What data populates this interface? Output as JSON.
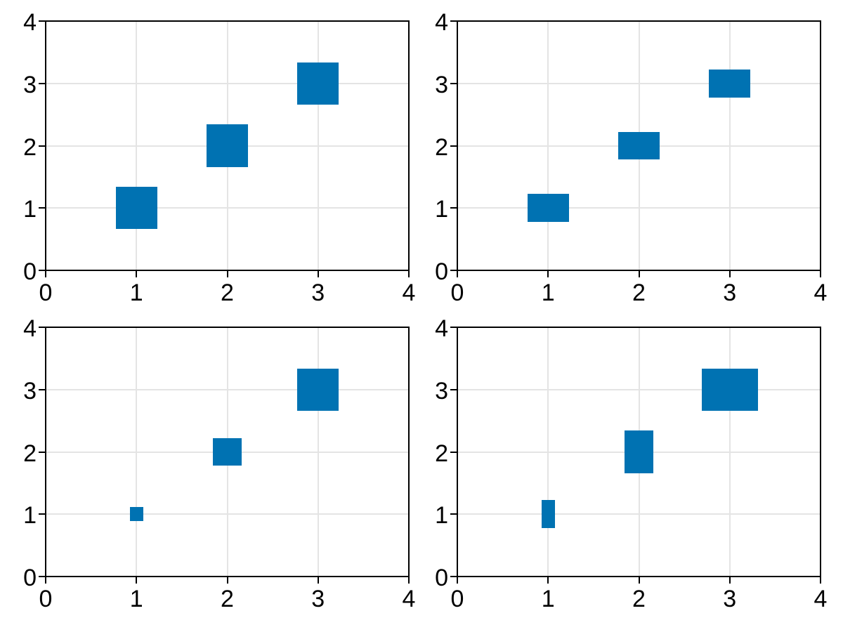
{
  "figure": {
    "kind": "matplotlib-style 2x2 subplot grid of square/rectangular scatter markers",
    "background_color": "#ffffff",
    "marker_color": "#0072b2",
    "grid_color": "#e4e4e4",
    "spine_color": "#000000",
    "tick_label_color": "#000000"
  },
  "chart_data": [
    {
      "id": "top-left",
      "type": "scatter",
      "marker": "square",
      "x": [
        1,
        2,
        3
      ],
      "y": [
        1,
        2,
        3
      ],
      "marker_sizes_data_units": [
        [
          0.46,
          0.68
        ],
        [
          0.46,
          0.68
        ],
        [
          0.46,
          0.68
        ]
      ],
      "size_note": "all three markers equal size, approx 60x60 px",
      "xlim": [
        0,
        4
      ],
      "ylim": [
        0,
        4
      ],
      "xticks": [
        0,
        1,
        2,
        3,
        4
      ],
      "yticks": [
        0,
        1,
        2,
        3,
        4
      ],
      "xtick_labels": [
        "0",
        "1",
        "2",
        "3",
        "4"
      ],
      "ytick_labels": [
        "0",
        "1",
        "2",
        "3",
        "4"
      ],
      "grid": true,
      "legend": null,
      "title": "",
      "xlabel": "",
      "ylabel": ""
    },
    {
      "id": "top-right",
      "type": "scatter",
      "marker": "rectangle",
      "x": [
        1,
        2,
        3
      ],
      "y": [
        1,
        2,
        3
      ],
      "marker_sizes_data_units": [
        [
          0.46,
          0.45
        ],
        [
          0.46,
          0.45
        ],
        [
          0.46,
          0.45
        ]
      ],
      "size_note": "all three markers equal size, approx 60x40 px (square in data units)",
      "xlim": [
        0,
        4
      ],
      "ylim": [
        0,
        4
      ],
      "xticks": [
        0,
        1,
        2,
        3,
        4
      ],
      "yticks": [
        0,
        1,
        2,
        3,
        4
      ],
      "xtick_labels": [
        "0",
        "1",
        "2",
        "3",
        "4"
      ],
      "ytick_labels": [
        "0",
        "1",
        "2",
        "3",
        "4"
      ],
      "grid": true,
      "legend": null,
      "title": "",
      "xlabel": "",
      "ylabel": ""
    },
    {
      "id": "bottom-left",
      "type": "scatter",
      "marker": "square",
      "x": [
        1,
        2,
        3
      ],
      "y": [
        1,
        2,
        3
      ],
      "marker_sizes_data_units": [
        [
          0.15,
          0.23
        ],
        [
          0.31,
          0.45
        ],
        [
          0.46,
          0.68
        ]
      ],
      "size_note": "marker size grows with value: approx 20x20, 40x40, 60x60 px",
      "xlim": [
        0,
        4
      ],
      "ylim": [
        0,
        4
      ],
      "xticks": [
        0,
        1,
        2,
        3,
        4
      ],
      "yticks": [
        0,
        1,
        2,
        3,
        4
      ],
      "xtick_labels": [
        "0",
        "1",
        "2",
        "3",
        "4"
      ],
      "ytick_labels": [
        "0",
        "1",
        "2",
        "3",
        "4"
      ],
      "grid": true,
      "legend": null,
      "title": "",
      "xlabel": "",
      "ylabel": ""
    },
    {
      "id": "bottom-right",
      "type": "scatter",
      "marker": "rectangle",
      "x": [
        1,
        2,
        3
      ],
      "y": [
        1,
        2,
        3
      ],
      "marker_sizes_data_units": [
        [
          0.15,
          0.45
        ],
        [
          0.31,
          0.68
        ],
        [
          0.62,
          0.68
        ]
      ],
      "size_note": "marker size grows with value: approx 20x40, 40x60, 80x60 px",
      "xlim": [
        0,
        4
      ],
      "ylim": [
        0,
        4
      ],
      "xticks": [
        0,
        1,
        2,
        3,
        4
      ],
      "yticks": [
        0,
        1,
        2,
        3,
        4
      ],
      "xtick_labels": [
        "0",
        "1",
        "2",
        "3",
        "4"
      ],
      "ytick_labels": [
        "0",
        "1",
        "2",
        "3",
        "4"
      ],
      "grid": true,
      "legend": null,
      "title": "",
      "xlabel": "",
      "ylabel": ""
    }
  ]
}
